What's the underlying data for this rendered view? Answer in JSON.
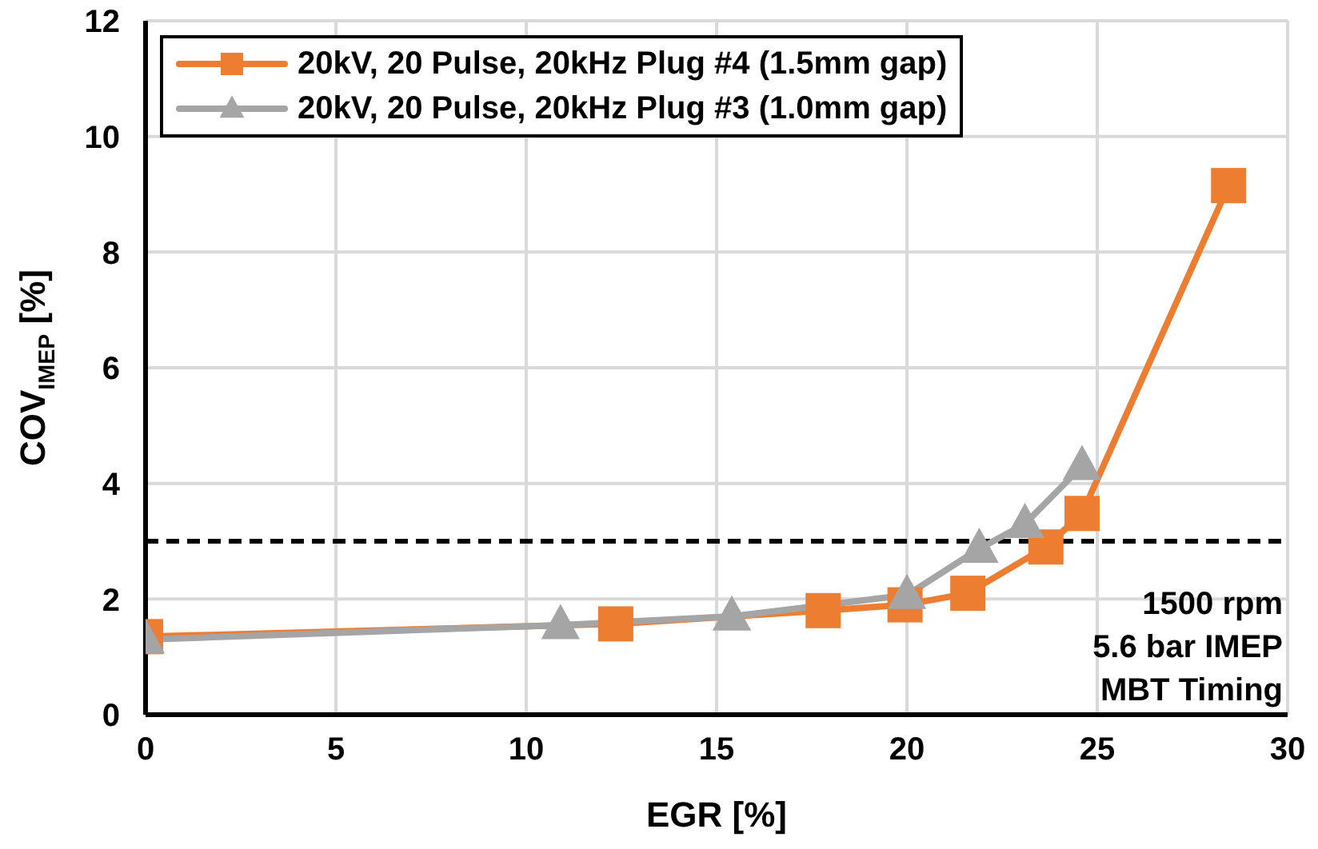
{
  "chart_data": {
    "type": "line",
    "xlabel": "EGR [%]",
    "ylabel": "COV$_{IMEP}$ [%]",
    "xlim": [
      0,
      30
    ],
    "xticks": [
      0,
      5,
      10,
      15,
      20,
      25,
      30
    ],
    "ylim": [
      0,
      12
    ],
    "yticks": [
      0,
      2,
      4,
      6,
      8,
      10,
      12
    ],
    "grid": true,
    "legend": "top left",
    "line_style": "solid",
    "series": [
      {
        "name": "20kV, 20 Pulse, 20kHz Plug #4 (1.5mm gap)",
        "color": "#ed7d31",
        "marker": "square",
        "x": [
          0,
          12.35,
          17.8,
          19.95,
          21.6,
          23.65,
          24.6,
          28.45
        ],
        "values": [
          1.35,
          1.57,
          1.8,
          1.9,
          2.1,
          2.9,
          3.48,
          9.15
        ]
      },
      {
        "name": "20kV, 20 Pulse, 20kHz Plug #3 (1.0mm gap)",
        "color": "#a5a5a5",
        "marker": "triangle",
        "x": [
          0,
          10.9,
          15.4,
          20.0,
          21.9,
          23.1,
          24.6
        ],
        "values": [
          1.3,
          1.55,
          1.7,
          2.07,
          2.87,
          3.3,
          4.3
        ]
      }
    ],
    "ref_lines": [
      {
        "axis": "y",
        "value": 3,
        "color": "#000000",
        "line_style": "dashed"
      }
    ],
    "annotations": [
      "1500 rpm",
      "5.6 bar IMEP",
      "MBT Timing"
    ]
  }
}
